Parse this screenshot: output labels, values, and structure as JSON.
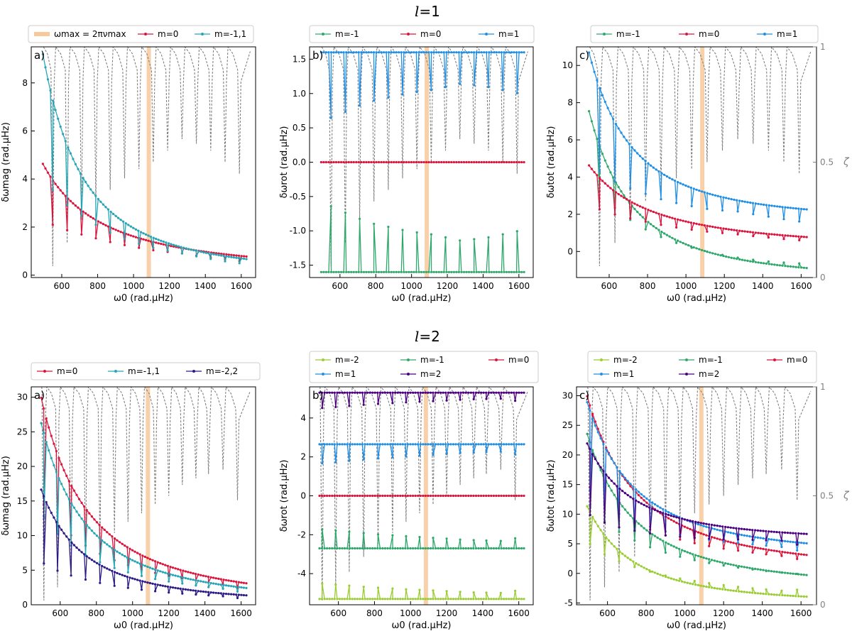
{
  "rows": [
    {
      "l_label": "l",
      "eq": "=1"
    },
    {
      "l_label": "l",
      "eq": "=2"
    }
  ],
  "colors": {
    "m0": "#dc143c",
    "m1": "#1f8fe6",
    "mneg1": "#2ea86a",
    "m11": "#26a6b5",
    "m2": "#4b0082",
    "mneg2": "#9acd32",
    "m22": "#2c1a86",
    "zeta": "#808080",
    "numax": "#f7c99b"
  },
  "chart_data": [
    {
      "type": "line",
      "panel": "a)",
      "row": 1,
      "xlabel": "ω0 (rad.μHz)",
      "ylabel": "δωmag (rad.μHz)",
      "xlim": [
        430,
        1680
      ],
      "ylim": [
        -0.1,
        9.5
      ],
      "xticks": [
        600,
        800,
        1000,
        1200,
        1400,
        1600
      ],
      "yticks": [
        0,
        2,
        4,
        6,
        8
      ],
      "numax": 1085,
      "zeta_axis": false,
      "legend": [
        "ωmax = 2πνmax",
        "m=0",
        "m=-1,1"
      ],
      "series": [
        {
          "name": "m=0",
          "color_key": "m0",
          "A": 4.7,
          "f0": 490,
          "p": 1.5,
          "c": 0.0,
          "dip": 0.55
        },
        {
          "name": "m=-1,1",
          "color_key": "m11",
          "A": 9.4,
          "f0": 490,
          "p": 2.2,
          "c": 0.0,
          "dip": 0.6
        }
      ]
    },
    {
      "type": "line",
      "panel": "b)",
      "row": 1,
      "xlabel": "ω0 (rad.μHz)",
      "ylabel": "δωrot (rad.μHz)",
      "xlim": [
        430,
        1680
      ],
      "ylim": [
        -1.68,
        1.68
      ],
      "xticks": [
        600,
        800,
        1000,
        1200,
        1400,
        1600
      ],
      "yticks": [
        -1.5,
        -1.0,
        -0.5,
        0.0,
        0.5,
        1.0,
        1.5
      ],
      "numax": 1085,
      "zeta_axis": false,
      "legend": [
        "m=-1",
        "m=0",
        "m=1"
      ],
      "series": [
        {
          "name": "m=-1",
          "color_key": "mneg1",
          "level": -1.6,
          "dip": -0.25
        },
        {
          "name": "m=0",
          "color_key": "m0",
          "level": 0.0,
          "dip": 0.0
        },
        {
          "name": "m=1",
          "color_key": "m1",
          "level": 1.6,
          "dip": 0.25
        }
      ]
    },
    {
      "type": "line",
      "panel": "c)",
      "row": 1,
      "xlabel": "ω0 (rad.μHz)",
      "ylabel": "δωtot (rad.μHz)",
      "xlim": [
        430,
        1680
      ],
      "ylim": [
        -1.4,
        11.0
      ],
      "xticks": [
        600,
        800,
        1000,
        1200,
        1400,
        1600
      ],
      "yticks": [
        0,
        2,
        4,
        6,
        8,
        10
      ],
      "numax": 1085,
      "zeta_axis": true,
      "zeta_label": "ζ",
      "zeta_ticks": [
        "0",
        "0.5",
        "1"
      ],
      "legend": [
        "m=-1",
        "m=0",
        "m=1"
      ],
      "series": [
        {
          "name": "m=-1",
          "color_key": "mneg1",
          "A": 9.3,
          "f0": 490,
          "p": 2.2,
          "c": -1.55,
          "dip": 0.5
        },
        {
          "name": "m=0",
          "color_key": "m0",
          "A": 4.7,
          "f0": 490,
          "p": 1.5,
          "c": 0.0,
          "dip": 0.5
        },
        {
          "name": "m=1",
          "color_key": "m1",
          "A": 9.3,
          "f0": 490,
          "p": 2.2,
          "c": 1.6,
          "dip": 0.6
        }
      ]
    },
    {
      "type": "line",
      "panel": "a)",
      "row": 2,
      "xlabel": "ω0 (rad.μHz)",
      "ylabel": "δωmag (rad.μHz)",
      "xlim": [
        440,
        1680
      ],
      "ylim": [
        0,
        31.5
      ],
      "xticks": [
        600,
        800,
        1000,
        1200,
        1400,
        1600
      ],
      "yticks": [
        0,
        5,
        10,
        15,
        20,
        25,
        30
      ],
      "numax": 1085,
      "zeta_axis": false,
      "legend": [
        "m=0",
        "m=-1,1",
        "m=-2,2"
      ],
      "series": [
        {
          "name": "m=0",
          "color_key": "m0",
          "A": 30.5,
          "f0": 490,
          "p": 1.9,
          "c": 0.0,
          "dip": 0.55
        },
        {
          "name": "m=-1,1",
          "color_key": "m11",
          "A": 26.8,
          "f0": 490,
          "p": 2.0,
          "c": 0.0,
          "dip": 0.55
        },
        {
          "name": "m=-2,2",
          "color_key": "m22",
          "A": 17.0,
          "f0": 490,
          "p": 2.1,
          "c": 0.0,
          "dip": 0.7
        }
      ]
    },
    {
      "type": "line",
      "panel": "b)",
      "row": 2,
      "xlabel": "ω0 (rad.μHz)",
      "ylabel": "δωrot (rad.μHz)",
      "xlim": [
        440,
        1680
      ],
      "ylim": [
        -5.6,
        5.6
      ],
      "xticks": [
        600,
        800,
        1000,
        1200,
        1400,
        1600
      ],
      "yticks": [
        -4,
        -2,
        0,
        2,
        4
      ],
      "numax": 1085,
      "zeta_axis": false,
      "legend": [
        "m=-2",
        "m=-1",
        "m=0",
        "m=1",
        "m=2"
      ],
      "series": [
        {
          "name": "m=-2",
          "color_key": "mneg2",
          "level": -5.3,
          "dip": -0.2
        },
        {
          "name": "m=-1",
          "color_key": "mneg1",
          "level": -2.7,
          "dip": -0.25
        },
        {
          "name": "m=0",
          "color_key": "m0",
          "level": 0.0,
          "dip": 0.0
        },
        {
          "name": "m=1",
          "color_key": "m1",
          "level": 2.65,
          "dip": 0.25
        },
        {
          "name": "m=2",
          "color_key": "m2",
          "level": 5.3,
          "dip": 0.2
        }
      ]
    },
    {
      "type": "line",
      "panel": "c)",
      "row": 2,
      "xlabel": "ω0 (rad.μHz)",
      "ylabel": "δωtot (rad.μHz)",
      "xlim": [
        440,
        1680
      ],
      "ylim": [
        -5.3,
        31.5
      ],
      "xticks": [
        600,
        800,
        1000,
        1200,
        1400,
        1600
      ],
      "yticks": [
        -5,
        0,
        5,
        10,
        15,
        20,
        25,
        30
      ],
      "numax": 1085,
      "zeta_axis": true,
      "zeta_label": "ζ",
      "zeta_ticks": [
        "0",
        "0.5",
        "1"
      ],
      "legend": [
        "m=-2",
        "m=-1",
        "m=0",
        "m=1",
        "m=2"
      ],
      "series": [
        {
          "name": "m=-2",
          "color_key": "mneg2",
          "A": 17.0,
          "f0": 490,
          "p": 2.1,
          "c": -5.3,
          "dip": 0.6
        },
        {
          "name": "m=-1",
          "color_key": "mneg1",
          "A": 26.8,
          "f0": 490,
          "p": 2.0,
          "c": -2.7,
          "dip": 0.55
        },
        {
          "name": "m=0",
          "color_key": "m0",
          "A": 30.5,
          "f0": 490,
          "p": 1.9,
          "c": 0.0,
          "dip": 0.55
        },
        {
          "name": "m=1",
          "color_key": "m1",
          "A": 26.8,
          "f0": 490,
          "p": 2.0,
          "c": 2.65,
          "dip": 0.55
        },
        {
          "name": "m=2",
          "color_key": "m2",
          "A": 17.0,
          "f0": 490,
          "p": 2.1,
          "c": 5.3,
          "dip": 0.6
        }
      ]
    }
  ],
  "zeta_dips": [
    {
      "row": 1,
      "freqs": [
        550,
        630,
        710,
        790,
        870,
        950,
        1030,
        1110,
        1190,
        1270,
        1350,
        1430,
        1510,
        1590
      ],
      "min": [
        0.05,
        0.15,
        0.25,
        0.33,
        0.38,
        0.43,
        0.47,
        0.5,
        0.55,
        0.6,
        0.58,
        0.55,
        0.5,
        0.45
      ]
    },
    {
      "row": 2,
      "freqs": [
        510,
        585,
        660,
        740,
        820,
        900,
        975,
        1050,
        1125,
        1200,
        1275,
        1350,
        1420,
        1500,
        1580
      ],
      "min": [
        0.02,
        0.08,
        0.15,
        0.22,
        0.28,
        0.33,
        0.38,
        0.42,
        0.46,
        0.5,
        0.55,
        0.58,
        0.6,
        0.62,
        0.48
      ]
    }
  ]
}
